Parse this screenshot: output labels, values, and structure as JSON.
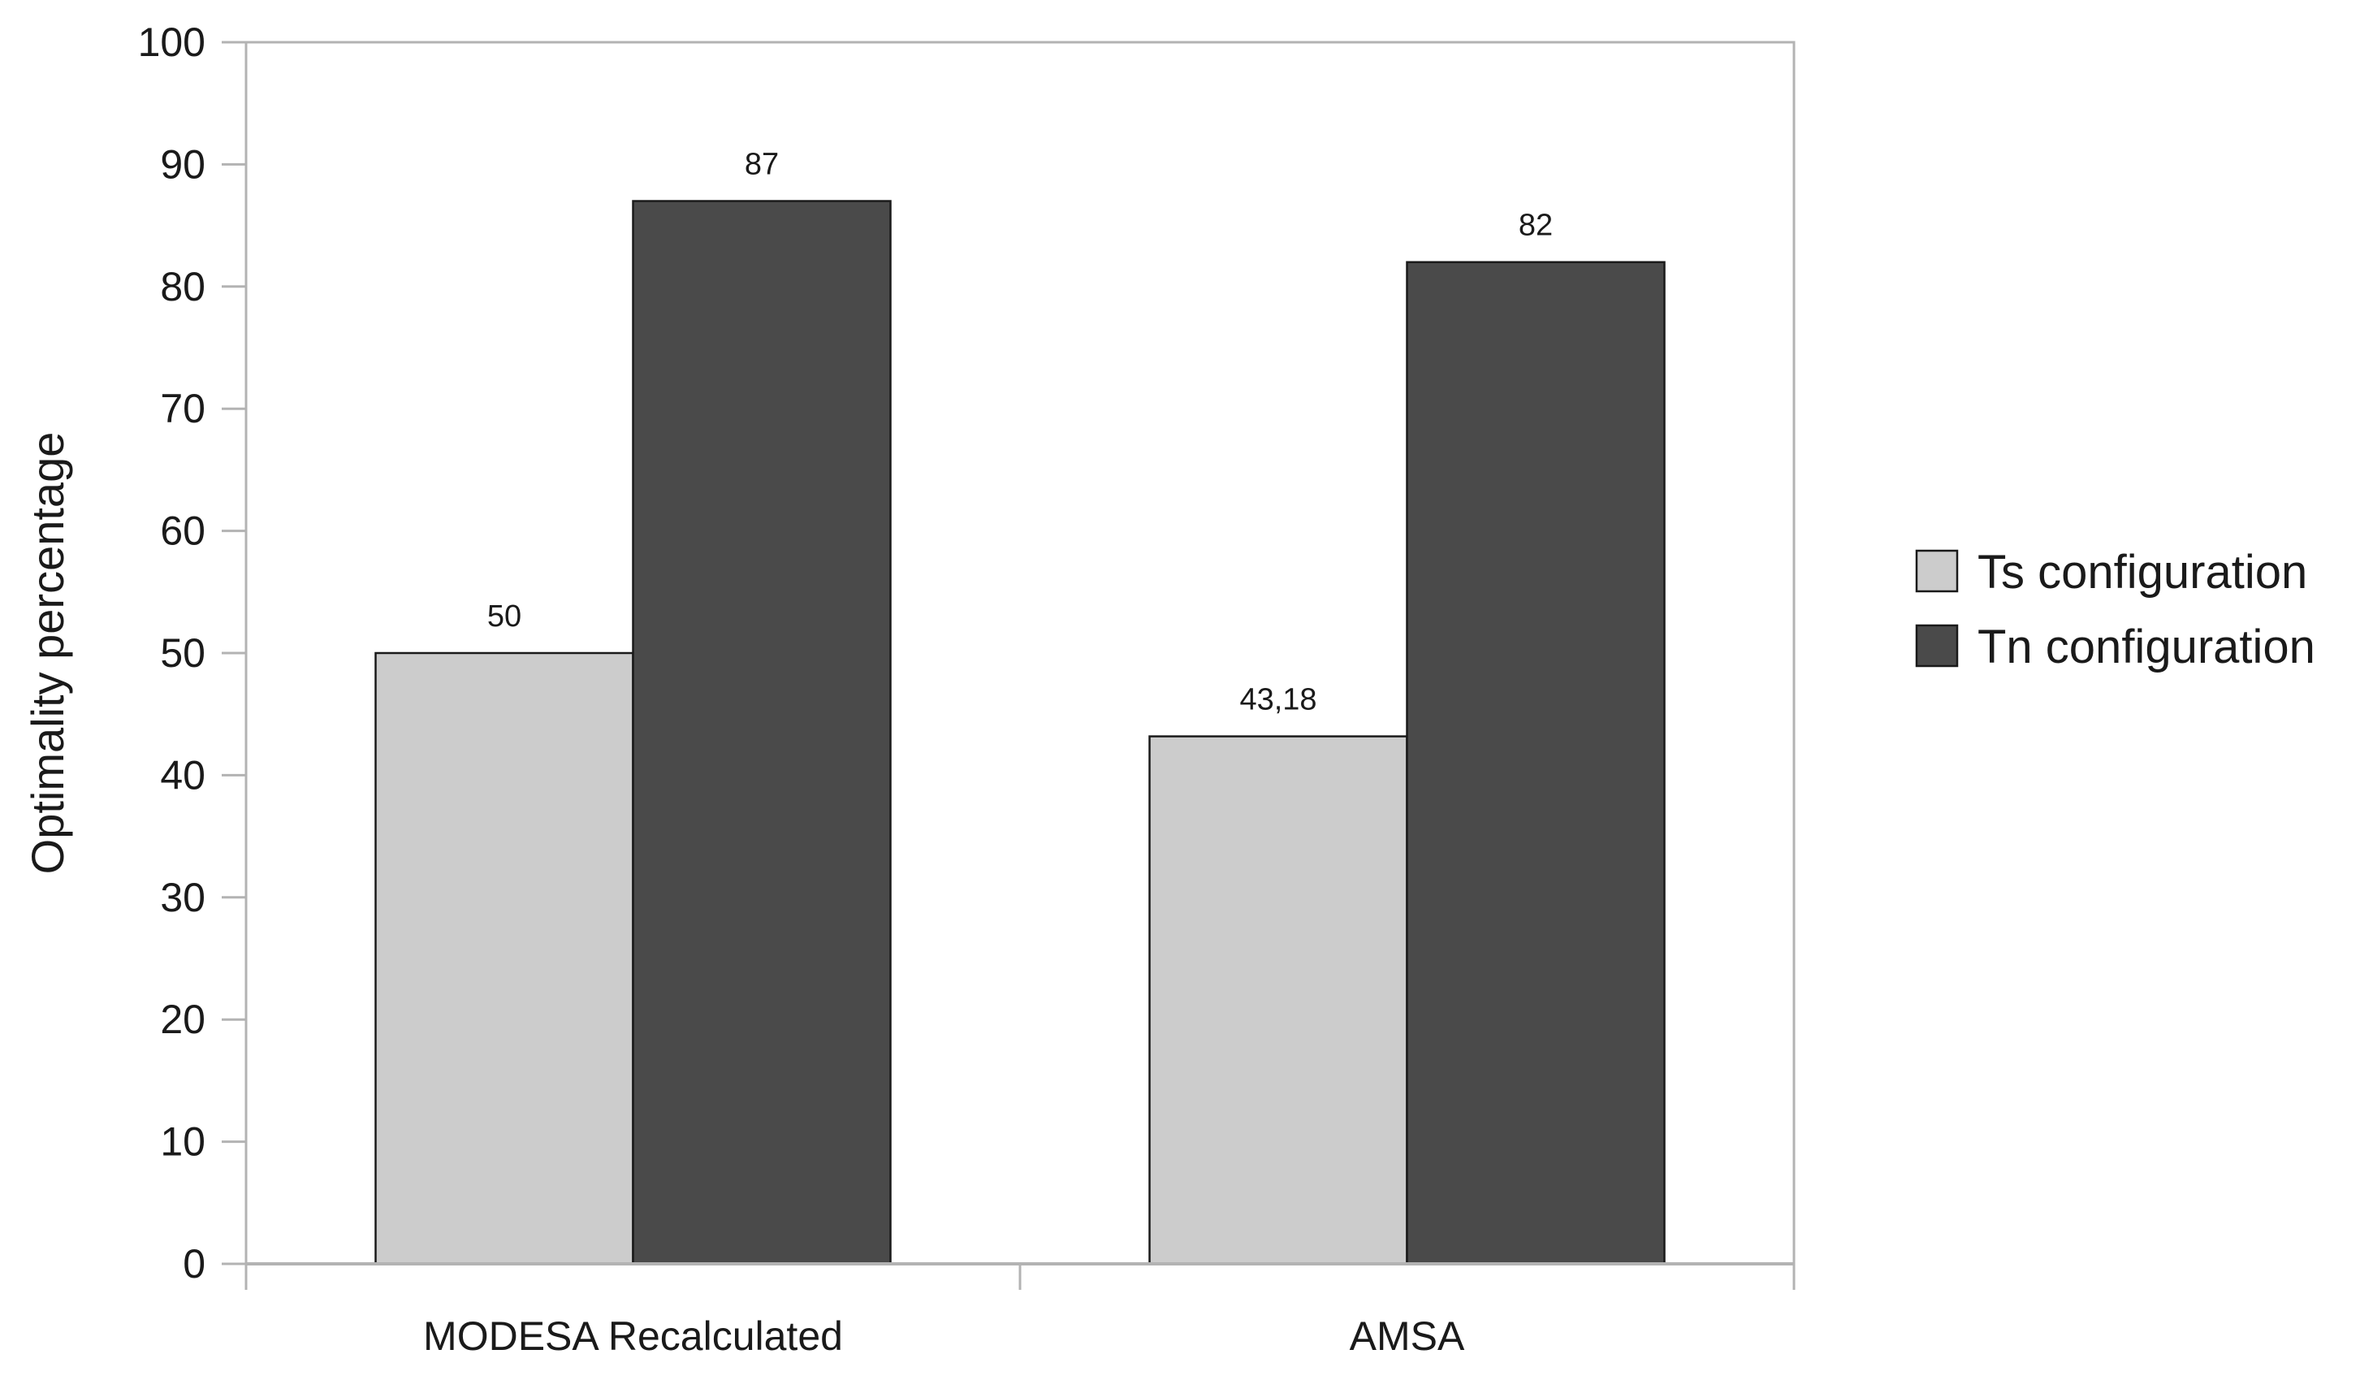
{
  "chart_data": {
    "type": "bar",
    "title": "",
    "xlabel": "",
    "ylabel": "Optimality percentage",
    "ylim": [
      0,
      100
    ],
    "yticks": [
      0,
      10,
      20,
      30,
      40,
      50,
      60,
      70,
      80,
      90,
      100
    ],
    "categories": [
      "MODESA Recalculated",
      "AMSA"
    ],
    "series": [
      {
        "name": "Ts configuration",
        "values": [
          50,
          43.18
        ],
        "labels": [
          "50",
          "43,18"
        ],
        "color": "#cccccc"
      },
      {
        "name": "Tn configuration",
        "values": [
          87,
          82
        ],
        "labels": [
          "87",
          "82"
        ],
        "color": "#4a4a4a"
      }
    ],
    "grid": false,
    "legend_position": "right"
  }
}
